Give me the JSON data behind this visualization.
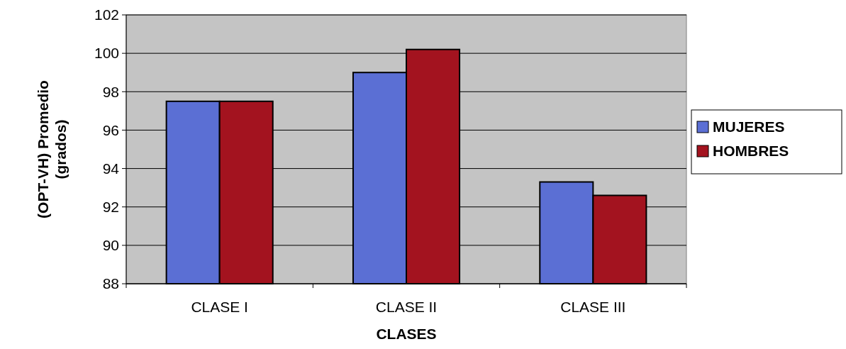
{
  "chart_data": {
    "type": "bar",
    "xlabel": "CLASES",
    "ylabel": "(OPT-VH) Promedio\n(grados)",
    "categories": [
      "CLASE I",
      "CLASE II",
      "CLASE III"
    ],
    "series": [
      {
        "name": "MUJERES",
        "color": "#5b6fd4",
        "values": [
          97.5,
          99.0,
          93.3
        ]
      },
      {
        "name": "HOMBRES",
        "color": "#a3131f",
        "values": [
          97.5,
          100.2,
          92.6
        ]
      }
    ],
    "ylim": [
      88,
      102
    ],
    "yticks": [
      88,
      90,
      92,
      94,
      96,
      98,
      100,
      102
    ],
    "grid": "y",
    "legend": "right"
  }
}
